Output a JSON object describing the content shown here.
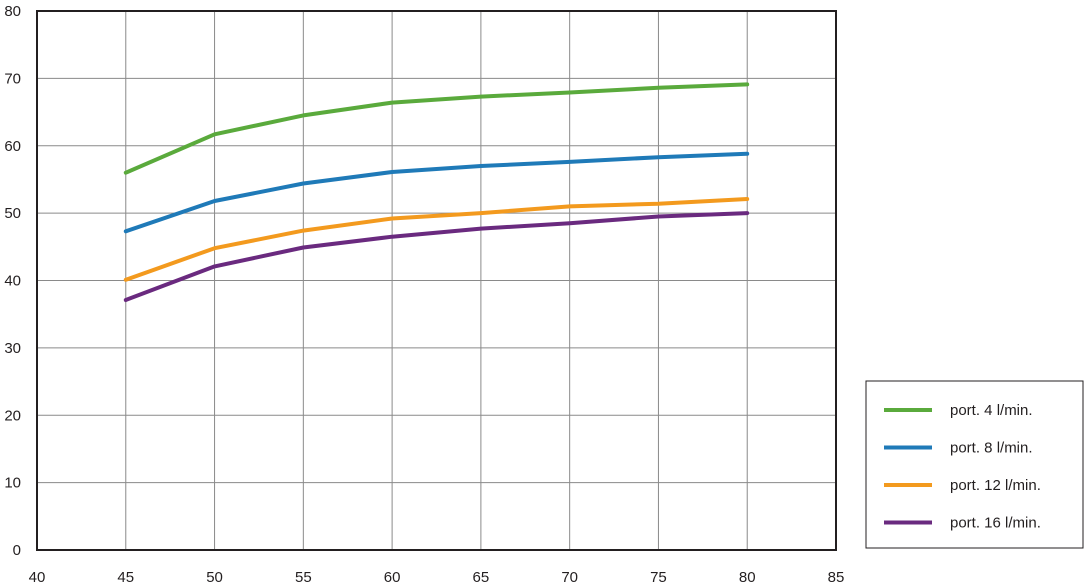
{
  "chart_data": {
    "type": "line",
    "title": "",
    "xlabel": "",
    "ylabel": "",
    "xlim": [
      40,
      85
    ],
    "ylim": [
      0,
      80
    ],
    "x_ticks": [
      40,
      45,
      50,
      55,
      60,
      65,
      70,
      75,
      80,
      85
    ],
    "y_ticks": [
      0,
      10,
      20,
      30,
      40,
      50,
      60,
      70,
      80
    ],
    "grid": true,
    "legend_position": "bottom-right, outside plot",
    "x": [
      45,
      50,
      55,
      60,
      65,
      70,
      75,
      80
    ],
    "series": [
      {
        "name": "port. 4 l/min.",
        "color": "#5aaa3c",
        "values": [
          56.0,
          61.7,
          64.5,
          66.4,
          67.3,
          67.9,
          68.6,
          69.1
        ]
      },
      {
        "name": "port. 8 l/min.",
        "color": "#1f7ab8",
        "values": [
          47.3,
          51.8,
          54.4,
          56.1,
          57.0,
          57.6,
          58.3,
          58.8
        ]
      },
      {
        "name": "port. 12 l/min.",
        "color": "#f39a1e",
        "values": [
          40.1,
          44.8,
          47.4,
          49.2,
          50.0,
          51.0,
          51.4,
          52.1
        ]
      },
      {
        "name": "port. 16 l/min.",
        "color": "#6a2a7f",
        "values": [
          37.1,
          42.1,
          44.9,
          46.5,
          47.7,
          48.5,
          49.5,
          50.0
        ]
      }
    ]
  }
}
